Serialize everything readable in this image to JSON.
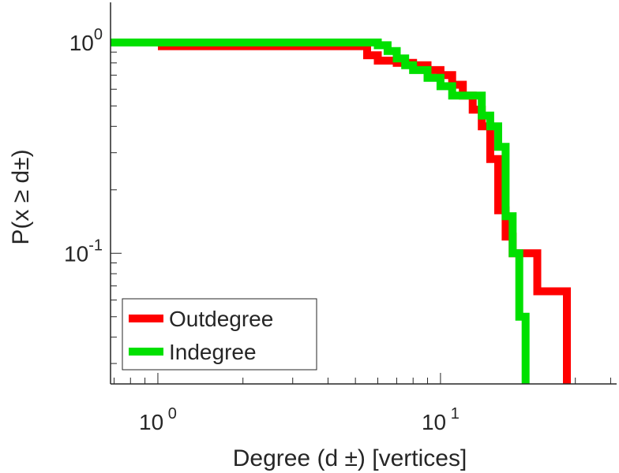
{
  "chart_data": {
    "type": "line",
    "step": true,
    "xscale": "log",
    "yscale": "log",
    "xlim": [
      0.68,
      42
    ],
    "ylim": [
      0.024,
      1.55
    ],
    "xlabel": "Degree (d ±) [vertices]",
    "ylabel": "P(x ≥ d±)",
    "xticks": [
      {
        "value": 1,
        "base": "10",
        "exp": "0"
      },
      {
        "value": 10,
        "base": "10",
        "exp": "1"
      }
    ],
    "yticks": [
      {
        "value": 1,
        "base": "10",
        "exp": "0"
      },
      {
        "value": 0.1,
        "base": "10",
        "exp": "-1"
      }
    ],
    "legend_position": "bottom-left",
    "series": [
      {
        "name": "Outdegree",
        "color": "#ff0000",
        "x": [
          1,
          5,
          5.5,
          6,
          7,
          8,
          9,
          10,
          11,
          12,
          13,
          14,
          15,
          16,
          17,
          18,
          19,
          20,
          22,
          24,
          26,
          28
        ],
        "y": [
          0.96,
          0.96,
          0.87,
          0.82,
          0.8,
          0.78,
          0.74,
          0.7,
          0.63,
          0.56,
          0.48,
          0.4,
          0.28,
          0.16,
          0.12,
          0.1,
          0.1,
          0.1,
          0.066,
          0.066,
          0.066,
          0.024
        ]
      },
      {
        "name": "Indegree",
        "color": "#00e000",
        "x": [
          0.68,
          1,
          2,
          3,
          4,
          5,
          6,
          6.5,
          7,
          7.5,
          8,
          9,
          10,
          11,
          12,
          14,
          15,
          16,
          17,
          18,
          19,
          20
        ],
        "y": [
          1,
          1,
          1,
          1,
          1,
          1,
          0.97,
          0.91,
          0.84,
          0.78,
          0.74,
          0.68,
          0.62,
          0.56,
          0.56,
          0.45,
          0.4,
          0.32,
          0.15,
          0.1,
          0.05,
          0.024
        ]
      }
    ]
  }
}
